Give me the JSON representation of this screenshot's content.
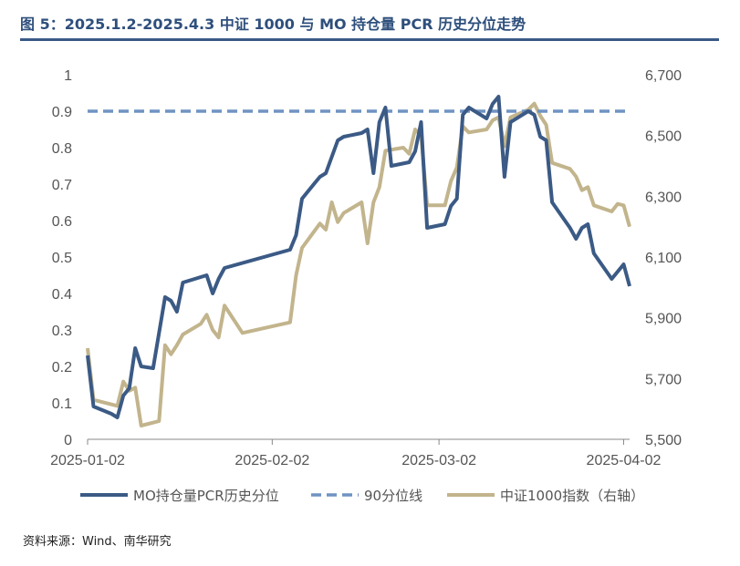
{
  "title": "图 5：2025.1.2-2025.4.3 中证 1000 与 MO 持仓量 PCR 历史分位走势",
  "source": "资料来源：Wind、南华研究",
  "colors": {
    "title": "#2e4f7c",
    "pcr": "#3b5a85",
    "threshold": "#6f93c2",
    "index": "#c2b48c",
    "axis": "#888888"
  },
  "chart_data": {
    "type": "line",
    "title": "图 5：2025.1.2-2025.4.3 中证 1000 与 MO 持仓量 PCR 历史分位走势",
    "x_ticks": [
      "2025-01-02",
      "2025-02-02",
      "2025-03-02",
      "2025-04-02"
    ],
    "x_range": [
      "2025-01-02",
      "2025-04-03"
    ],
    "y_left": {
      "range": [
        0,
        1
      ],
      "ticks": [
        "0",
        "0.1",
        "0.2",
        "0.3",
        "0.4",
        "0.5",
        "0.6",
        "0.7",
        "0.8",
        "0.9",
        "1"
      ]
    },
    "y_right": {
      "range": [
        5500,
        6700
      ],
      "ticks": [
        "5,500",
        "5,700",
        "5,900",
        "6,100",
        "6,300",
        "6,500",
        "6,700"
      ]
    },
    "grid": false,
    "legend_position": "bottom",
    "series": [
      {
        "name": "MO持仓量PCR历史分位",
        "axis": "left",
        "style": "solid",
        "points": [
          [
            "2025-01-02",
            0.23
          ],
          [
            "2025-01-03",
            0.09
          ],
          [
            "2025-01-06",
            0.07
          ],
          [
            "2025-01-07",
            0.06
          ],
          [
            "2025-01-08",
            0.12
          ],
          [
            "2025-01-09",
            0.14
          ],
          [
            "2025-01-10",
            0.25
          ],
          [
            "2025-01-11",
            0.2
          ],
          [
            "2025-01-13",
            0.195
          ],
          [
            "2025-01-15",
            0.39
          ],
          [
            "2025-01-16",
            0.38
          ],
          [
            "2025-01-17",
            0.35
          ],
          [
            "2025-01-18",
            0.43
          ],
          [
            "2025-01-21",
            0.445
          ],
          [
            "2025-01-22",
            0.45
          ],
          [
            "2025-01-23",
            0.4
          ],
          [
            "2025-01-24",
            0.44
          ],
          [
            "2025-01-25",
            0.47
          ],
          [
            "2025-02-05",
            0.52
          ],
          [
            "2025-02-06",
            0.56
          ],
          [
            "2025-02-07",
            0.66
          ],
          [
            "2025-02-09",
            0.7
          ],
          [
            "2025-02-10",
            0.72
          ],
          [
            "2025-02-11",
            0.73
          ],
          [
            "2025-02-13",
            0.82
          ],
          [
            "2025-02-14",
            0.83
          ],
          [
            "2025-02-17",
            0.84
          ],
          [
            "2025-02-18",
            0.85
          ],
          [
            "2025-02-19",
            0.73
          ],
          [
            "2025-02-20",
            0.87
          ],
          [
            "2025-02-21",
            0.91
          ],
          [
            "2025-02-22",
            0.75
          ],
          [
            "2025-02-25",
            0.76
          ],
          [
            "2025-02-26",
            0.79
          ],
          [
            "2025-02-27",
            0.87
          ],
          [
            "2025-02-28",
            0.58
          ],
          [
            "2025-03-03",
            0.59
          ],
          [
            "2025-03-04",
            0.64
          ],
          [
            "2025-03-05",
            0.66
          ],
          [
            "2025-03-06",
            0.89
          ],
          [
            "2025-03-07",
            0.91
          ],
          [
            "2025-03-10",
            0.88
          ],
          [
            "2025-03-11",
            0.92
          ],
          [
            "2025-03-12",
            0.94
          ],
          [
            "2025-03-13",
            0.72
          ],
          [
            "2025-03-14",
            0.87
          ],
          [
            "2025-03-17",
            0.9
          ],
          [
            "2025-03-18",
            0.89
          ],
          [
            "2025-03-19",
            0.83
          ],
          [
            "2025-03-20",
            0.82
          ],
          [
            "2025-03-21",
            0.65
          ],
          [
            "2025-03-24",
            0.58
          ],
          [
            "2025-03-25",
            0.55
          ],
          [
            "2025-03-26",
            0.58
          ],
          [
            "2025-03-27",
            0.59
          ],
          [
            "2025-03-28",
            0.51
          ],
          [
            "2025-03-31",
            0.44
          ],
          [
            "2025-04-02",
            0.48
          ],
          [
            "2025-04-03",
            0.42
          ]
        ]
      },
      {
        "name": "90分位线",
        "axis": "left",
        "style": "dashed",
        "points": [
          [
            "2025-01-02",
            0.9
          ],
          [
            "2025-04-03",
            0.9
          ]
        ]
      },
      {
        "name": "中证1000指数（右轴）",
        "axis": "right",
        "style": "solid",
        "points": [
          [
            "2025-01-02",
            5800
          ],
          [
            "2025-01-03",
            5630
          ],
          [
            "2025-01-06",
            5615
          ],
          [
            "2025-01-07",
            5610
          ],
          [
            "2025-01-08",
            5690
          ],
          [
            "2025-01-09",
            5660
          ],
          [
            "2025-01-10",
            5670
          ],
          [
            "2025-01-11",
            5545
          ],
          [
            "2025-01-13",
            5555
          ],
          [
            "2025-01-14",
            5560
          ],
          [
            "2025-01-15",
            5810
          ],
          [
            "2025-01-16",
            5780
          ],
          [
            "2025-01-17",
            5810
          ],
          [
            "2025-01-18",
            5845
          ],
          [
            "2025-01-21",
            5880
          ],
          [
            "2025-01-22",
            5910
          ],
          [
            "2025-01-23",
            5860
          ],
          [
            "2025-01-24",
            5835
          ],
          [
            "2025-01-25",
            5940
          ],
          [
            "2025-01-28",
            5850
          ],
          [
            "2025-02-05",
            5885
          ],
          [
            "2025-02-06",
            6040
          ],
          [
            "2025-02-07",
            6130
          ],
          [
            "2025-02-10",
            6210
          ],
          [
            "2025-02-11",
            6190
          ],
          [
            "2025-02-12",
            6280
          ],
          [
            "2025-02-13",
            6215
          ],
          [
            "2025-02-14",
            6245
          ],
          [
            "2025-02-17",
            6280
          ],
          [
            "2025-02-18",
            6145
          ],
          [
            "2025-02-19",
            6280
          ],
          [
            "2025-02-20",
            6330
          ],
          [
            "2025-02-21",
            6450
          ],
          [
            "2025-02-24",
            6460
          ],
          [
            "2025-02-25",
            6440
          ],
          [
            "2025-02-26",
            6520
          ],
          [
            "2025-02-27",
            6500
          ],
          [
            "2025-02-28",
            6270
          ],
          [
            "2025-03-03",
            6270
          ],
          [
            "2025-03-04",
            6350
          ],
          [
            "2025-03-05",
            6395
          ],
          [
            "2025-03-06",
            6530
          ],
          [
            "2025-03-07",
            6510
          ],
          [
            "2025-03-10",
            6520
          ],
          [
            "2025-03-11",
            6550
          ],
          [
            "2025-03-12",
            6560
          ],
          [
            "2025-03-13",
            6465
          ],
          [
            "2025-03-14",
            6560
          ],
          [
            "2025-03-17",
            6585
          ],
          [
            "2025-03-18",
            6605
          ],
          [
            "2025-03-19",
            6565
          ],
          [
            "2025-03-20",
            6535
          ],
          [
            "2025-03-21",
            6410
          ],
          [
            "2025-03-24",
            6390
          ],
          [
            "2025-03-25",
            6365
          ],
          [
            "2025-03-26",
            6320
          ],
          [
            "2025-03-27",
            6330
          ],
          [
            "2025-03-28",
            6270
          ],
          [
            "2025-03-31",
            6250
          ],
          [
            "2025-04-01",
            6275
          ],
          [
            "2025-04-02",
            6270
          ],
          [
            "2025-04-03",
            6200
          ]
        ]
      }
    ]
  }
}
